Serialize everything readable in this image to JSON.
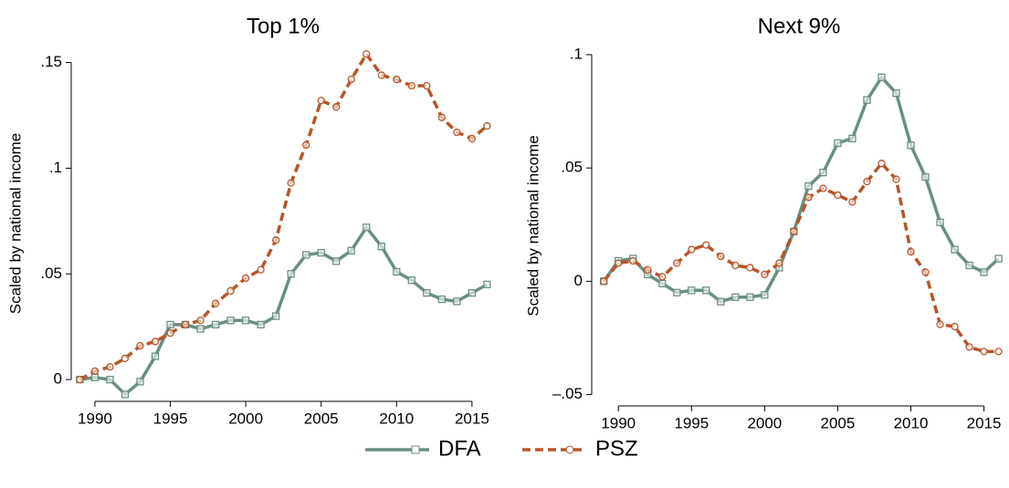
{
  "chart_data": [
    {
      "type": "line",
      "title": "Top 1%",
      "ylabel": "Scaled by national income",
      "x": [
        1989,
        1990,
        1991,
        1992,
        1993,
        1994,
        1995,
        1996,
        1997,
        1998,
        1999,
        2000,
        2001,
        2002,
        2003,
        2004,
        2005,
        2006,
        2007,
        2008,
        2009,
        2010,
        2011,
        2012,
        2013,
        2014,
        2015,
        2016
      ],
      "series": [
        {
          "name": "DFA",
          "color": "#6a8f80",
          "values": [
            0,
            0.001,
            0,
            -0.007,
            -0.001,
            0.011,
            0.026,
            0.026,
            0.024,
            0.026,
            0.028,
            0.028,
            0.026,
            0.03,
            0.05,
            0.059,
            0.06,
            0.056,
            0.061,
            0.072,
            0.063,
            0.051,
            0.047,
            0.041,
            0.038,
            0.037,
            0.041,
            0.045
          ]
        },
        {
          "name": "PSZ",
          "color": "#b5562a",
          "values": [
            0,
            0.004,
            0.006,
            0.01,
            0.016,
            0.018,
            0.022,
            0.026,
            0.028,
            0.036,
            0.042,
            0.048,
            0.052,
            0.066,
            0.093,
            0.111,
            0.132,
            0.129,
            0.142,
            0.154,
            0.144,
            0.142,
            0.139,
            0.139,
            0.124,
            0.117,
            0.114,
            0.12
          ]
        }
      ],
      "xlim": [
        1988.55,
        2016.4
      ],
      "xticks": [
        1990,
        1995,
        2000,
        2005,
        2010,
        2015
      ],
      "ylim": [
        -0.0103,
        0.158
      ],
      "yticks": [
        0,
        {
          "value": 0.05,
          "label": ".05"
        },
        {
          "value": 0.1,
          "label": ".1"
        },
        {
          "value": 0.15,
          "label": ".15"
        }
      ]
    },
    {
      "type": "line",
      "title": "Next 9%",
      "ylabel": "Scaled by national income",
      "x": [
        1989,
        1990,
        1991,
        1992,
        1993,
        1994,
        1995,
        1996,
        1997,
        1998,
        1999,
        2000,
        2001,
        2002,
        2003,
        2004,
        2005,
        2006,
        2007,
        2008,
        2009,
        2010,
        2011,
        2012,
        2013,
        2014,
        2015,
        2016
      ],
      "series": [
        {
          "name": "DFA",
          "color": "#6a8f80",
          "values": [
            0,
            0.009,
            0.01,
            0.003,
            -0.001,
            -0.005,
            -0.004,
            -0.004,
            -0.009,
            -0.007,
            -0.007,
            -0.006,
            0.006,
            0.022,
            0.042,
            0.048,
            0.061,
            0.063,
            0.08,
            0.09,
            0.083,
            0.06,
            0.046,
            0.026,
            0.014,
            0.007,
            0.004,
            0.01
          ]
        },
        {
          "name": "PSZ",
          "color": "#b5562a",
          "values": [
            0,
            0.008,
            0.009,
            0.005,
            0.002,
            0.008,
            0.014,
            0.016,
            0.011,
            0.007,
            0.006,
            0.003,
            0.008,
            0.022,
            0.037,
            0.041,
            0.038,
            0.035,
            0.044,
            0.052,
            0.045,
            0.013,
            0.004,
            -0.019,
            -0.02,
            -0.029,
            -0.031,
            -0.031
          ]
        }
      ],
      "xlim": [
        1988.3,
        2016.4
      ],
      "xticks": [
        1990,
        1995,
        2000,
        2005,
        2010,
        2015
      ],
      "ylim": [
        -0.055,
        0.104
      ],
      "yticks": [
        {
          "value": -0.05,
          "label": "–.05"
        },
        0,
        {
          "value": 0.05,
          "label": ".05"
        },
        {
          "value": 0.1,
          "label": ".1"
        }
      ]
    }
  ]
}
